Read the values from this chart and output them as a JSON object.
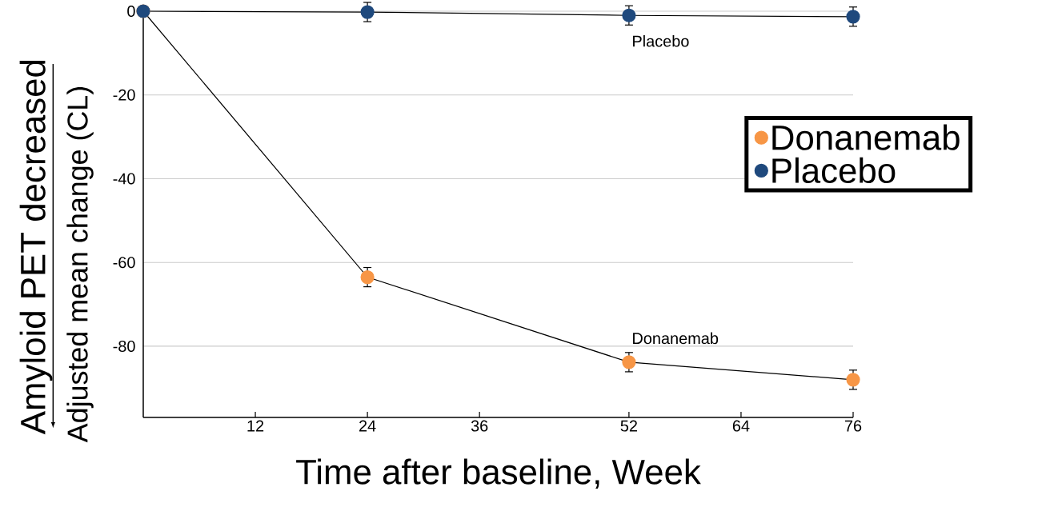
{
  "chart_data": {
    "type": "line",
    "xlabel": "Time after baseline, Week",
    "ylabel": "Adjusted mean change (CL)",
    "x": [
      0,
      24,
      52,
      76
    ],
    "series": [
      {
        "name": "Donanemab",
        "color": "#f79646",
        "values": [
          0,
          -63.5,
          -83.8,
          -88.0
        ],
        "errors": [
          null,
          2.3,
          2.3,
          2.3
        ]
      },
      {
        "name": "Placebo",
        "color": "#1f497d",
        "values": [
          0,
          -0.2,
          -1.0,
          -1.3
        ],
        "errors": [
          null,
          2.3,
          2.3,
          2.3
        ]
      }
    ],
    "xlim": [
      0,
      76
    ],
    "ylim": [
      -97,
      0
    ],
    "xticks": [
      12,
      24,
      36,
      52,
      64,
      76
    ],
    "yticks": [
      0,
      -20,
      -40,
      -60,
      -80
    ],
    "grid": "y",
    "legend": "right",
    "marker": "circle",
    "annotations": [
      "Amyloid PET decreased",
      "Placebo",
      "Donanemab"
    ]
  }
}
